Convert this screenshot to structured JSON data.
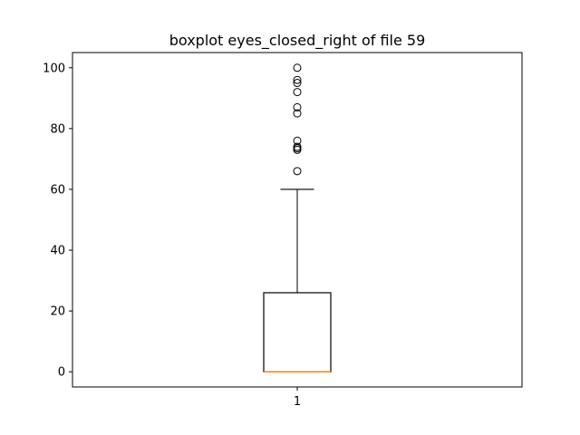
{
  "chart_data": {
    "type": "boxplot",
    "title": "boxplot eyes_closed_right of file 59",
    "xlabel": "",
    "ylabel": "",
    "categories": [
      "1"
    ],
    "ylim": [
      -5,
      105
    ],
    "yticks": [
      0,
      20,
      40,
      60,
      80,
      100
    ],
    "grid": false,
    "boxes": [
      {
        "category": "1",
        "whisker_low": 0,
        "q1": 0,
        "median": 0,
        "q3": 26,
        "whisker_high": 60,
        "outliers": [
          66,
          73,
          73.5,
          74,
          76,
          85,
          87,
          92,
          95,
          96,
          100
        ]
      }
    ],
    "colors": {
      "box": "#000000",
      "median": "#ff7f0e",
      "outlier": "#000000"
    }
  }
}
